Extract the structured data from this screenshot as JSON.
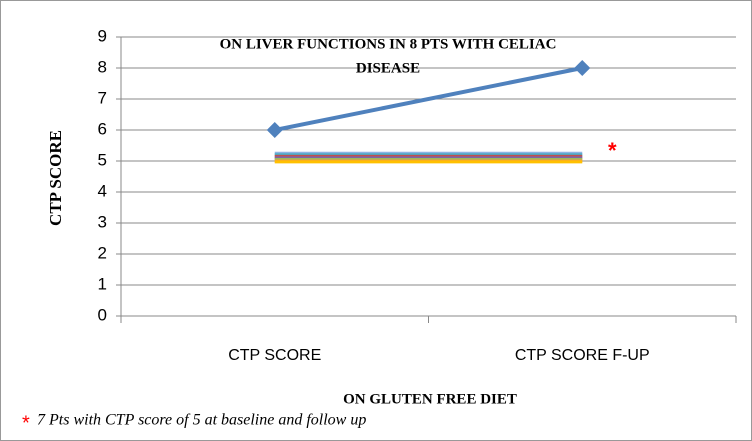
{
  "chart_data": {
    "type": "line",
    "title": [
      "ON LIVER FUNCTIONS IN 8 PTS WITH CELIAC",
      "DISEASE"
    ],
    "x_label": "ON GLUTEN FREE DIET",
    "y_label": "CTP  SCORE",
    "categories": [
      "CTP SCORE",
      "CTP SCORE F-UP"
    ],
    "series": [
      {
        "color": "#4f81bd",
        "marker": "diamond",
        "values": [
          6,
          8
        ]
      },
      {
        "color": "#8eb4e3",
        "values": [
          5.25,
          5.25
        ]
      },
      {
        "color": "#4bacc6",
        "values": [
          5.2,
          5.2
        ]
      },
      {
        "color": "#c0504d",
        "values": [
          5.15,
          5.15
        ]
      },
      {
        "color": "#8064a2",
        "values": [
          5.1,
          5.1
        ]
      },
      {
        "color": "#9bbb59",
        "values": [
          5.05,
          5.05
        ]
      },
      {
        "color": "#f79646",
        "values": [
          5.0,
          5.0
        ]
      },
      {
        "color": "#ffc000",
        "values": [
          4.97,
          4.97
        ]
      }
    ],
    "ylim": [
      0,
      9
    ],
    "yticks": [
      0,
      1,
      2,
      3,
      4,
      5,
      6,
      7,
      8,
      9
    ],
    "grid": true,
    "annotation": "*",
    "footnote": {
      "marker": "*",
      "text": "7 Pts with CTP score of 5 at baseline and follow up"
    }
  }
}
